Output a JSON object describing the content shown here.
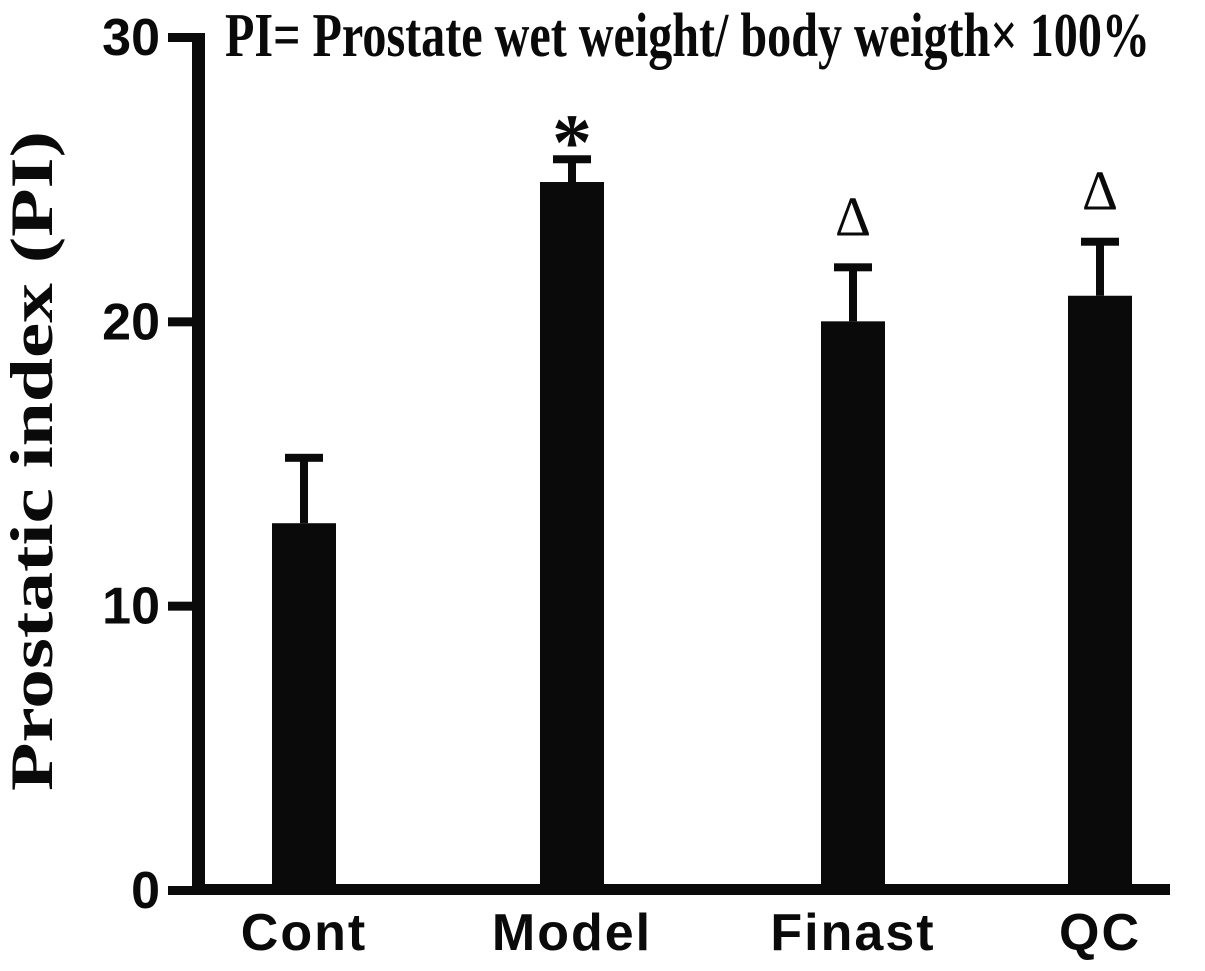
{
  "chart_data": {
    "type": "bar",
    "title": "PI= Prostate wet weight/ body weigth× 100%",
    "ylabel": "Prostatic index (PI)",
    "xlabel": "",
    "categories": [
      "Cont",
      "Model",
      "Finast",
      "QC"
    ],
    "series": [
      {
        "name": "Prostatic index (PI)",
        "values": [
          12.9,
          24.9,
          20.0,
          20.9
        ],
        "errors_plus": [
          2.3,
          0.8,
          1.9,
          1.9
        ],
        "significance_marks": [
          "",
          "*",
          "Δ",
          "Δ"
        ]
      }
    ],
    "ylim": [
      0,
      30
    ],
    "yticks": [
      0,
      10,
      20,
      30
    ],
    "grid": false,
    "legend": false,
    "error_bars": "top-only",
    "bar_color": "#0a0a0a",
    "axis_color": "#0a0a0a",
    "background_color": "#ffffff"
  }
}
